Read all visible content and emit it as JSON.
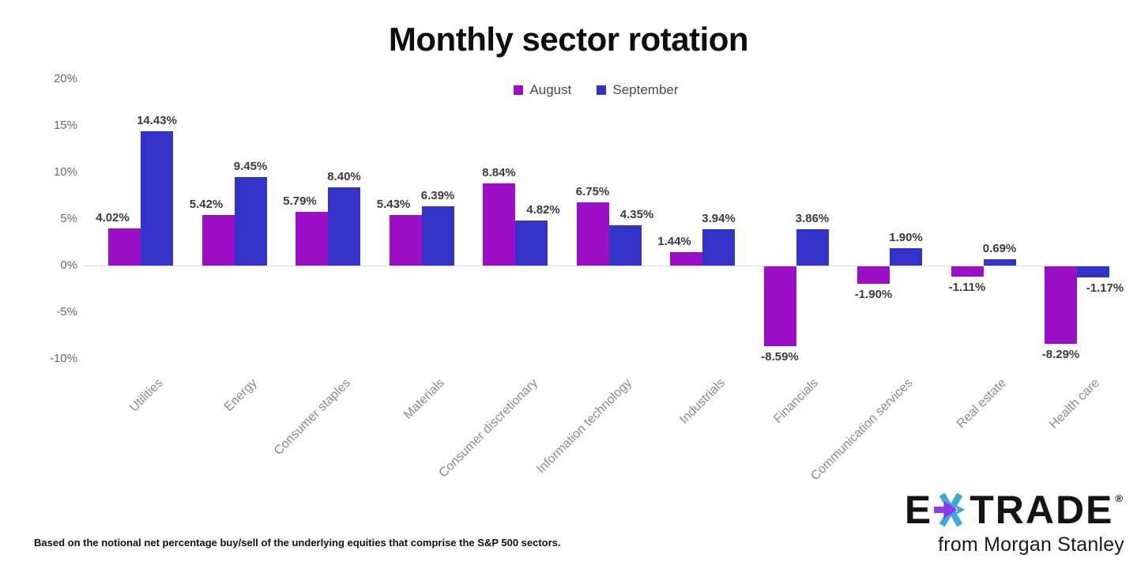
{
  "title": "Monthly sector rotation",
  "legend": {
    "items": [
      {
        "label": "August",
        "color": "#9D0FC6"
      },
      {
        "label": "September",
        "color": "#3433C9"
      }
    ]
  },
  "y_axis": {
    "tick_labels": [
      "20%",
      "15%",
      "10%",
      "5%",
      "0%",
      "-5%",
      "-10%"
    ],
    "tick_values": [
      20,
      15,
      10,
      5,
      0,
      -5,
      -10
    ]
  },
  "chart_data": {
    "type": "bar",
    "title": "Monthly sector rotation",
    "categories": [
      "Utilities",
      "Energy",
      "Consumer staples",
      "Materials",
      "Consumer discretionary",
      "Information technology",
      "Industrials",
      "Financials",
      "Communication services",
      "Real estate",
      "Health care"
    ],
    "series": [
      {
        "name": "August",
        "color": "#9D0FC6",
        "values": [
          4.02,
          5.42,
          5.79,
          5.43,
          8.84,
          6.75,
          1.44,
          -8.59,
          -1.9,
          -1.11,
          -8.29
        ]
      },
      {
        "name": "September",
        "color": "#3433C9",
        "values": [
          14.43,
          9.45,
          8.4,
          6.39,
          4.82,
          4.35,
          3.94,
          3.86,
          1.9,
          0.69,
          -1.17
        ]
      }
    ],
    "value_label_format": "0.00%",
    "xlabel": "",
    "ylabel": "",
    "ylim": [
      -10,
      20
    ],
    "grid": false,
    "legend_position": "top-center"
  },
  "footer": {
    "note": "Based on the notional net percentage buy/sell of the underlying equities that comprise the S&P 500 sectors."
  },
  "logo": {
    "brand_prefix": "E",
    "brand_suffix": "TRADE",
    "registered_mark": "®",
    "tagline": "from Morgan Stanley",
    "asterisk_purple": "#8B3BE8",
    "asterisk_blue": "#3FA8DB"
  }
}
